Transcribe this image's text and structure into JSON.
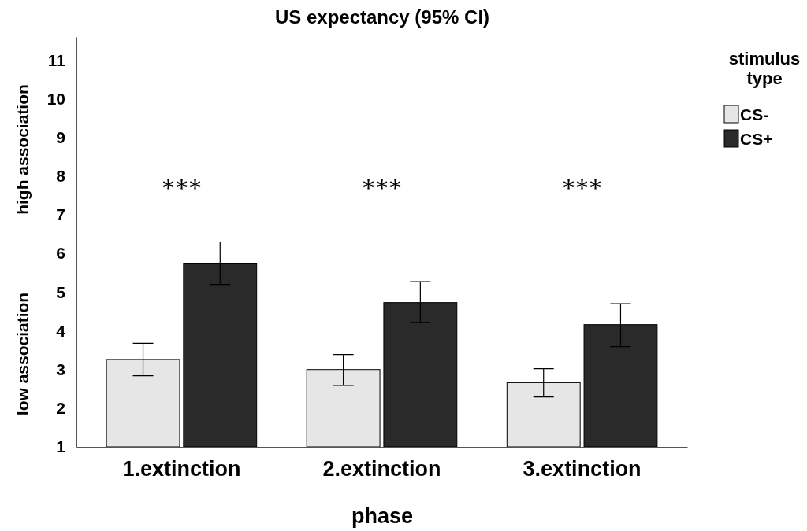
{
  "chart_data": {
    "type": "bar",
    "title": "US expectancy (95% CI)",
    "xlabel": "phase",
    "ylabel": "low association",
    "legend_title": "stimulus type",
    "categories": [
      "1.extinction",
      "2.extinction",
      "3.extinction"
    ],
    "series": [
      {
        "name": "CS-",
        "color": "#e6e6e6",
        "values": [
          3.26,
          3.0,
          2.66
        ],
        "errors": [
          [
            2.84,
            3.68
          ],
          [
            2.59,
            3.39
          ],
          [
            2.29,
            3.02
          ]
        ]
      },
      {
        "name": "CS+",
        "color": "#2a2a2a",
        "values": [
          5.75,
          4.73,
          4.16
        ],
        "errors": [
          [
            5.2,
            6.3
          ],
          [
            4.22,
            5.27
          ],
          [
            3.59,
            4.7
          ]
        ]
      }
    ],
    "ylim": [
      1,
      11.6
    ],
    "yticks": [
      1,
      2,
      3,
      4,
      5,
      6,
      7,
      8,
      9,
      10,
      11
    ],
    "grid": false,
    "legend": "top right",
    "annotations": [
      "high association",
      "***",
      "***",
      "***"
    ]
  }
}
